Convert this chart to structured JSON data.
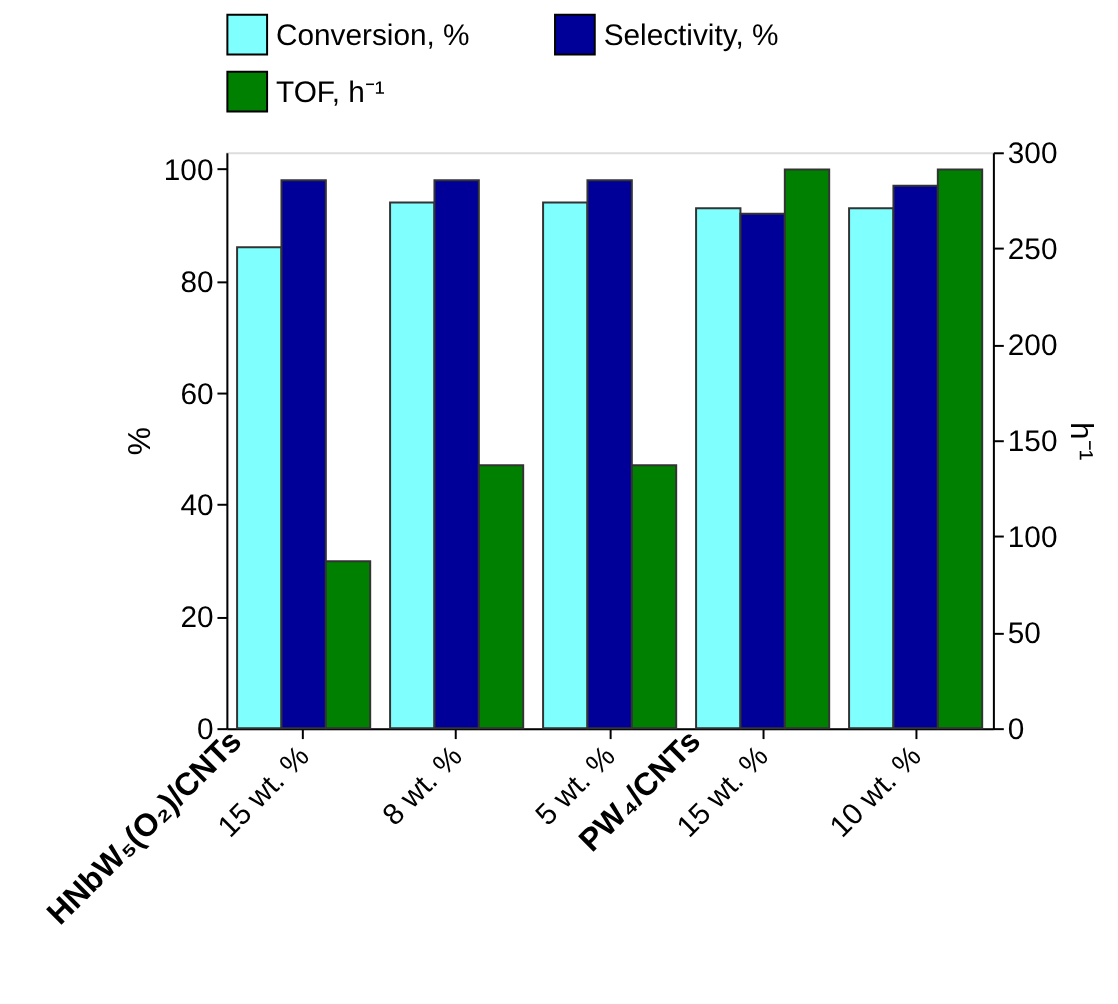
{
  "chart_data": {
    "type": "bar",
    "categories": [
      "15 wt. %",
      "8 wt. %",
      "5 wt. %",
      "15 wt. %",
      "10 wt. %"
    ],
    "series": [
      {
        "name": "Conversion, %",
        "color": "#80ffff",
        "values": [
          86,
          94,
          94,
          93,
          93
        ]
      },
      {
        "name": "Selectivity, %",
        "color": "#000099",
        "values": [
          98,
          98,
          98,
          92,
          97
        ]
      },
      {
        "name": "TOF, h⁻¹",
        "color": "#008000",
        "values": [
          87,
          137,
          137,
          291,
          291
        ],
        "axis": "y2"
      }
    ],
    "ylabel": "%",
    "y2label": "h⁻¹",
    "ylim": [
      0,
      103
    ],
    "yticks": [
      0,
      20,
      40,
      60,
      80,
      100
    ],
    "y2lim": [
      0,
      300
    ],
    "y2ticks": [
      0,
      50,
      100,
      150,
      200,
      250,
      300
    ],
    "annotations": [
      "HNbW₅(O₂)/CNTs",
      "PW₄/CNTs"
    ],
    "legend": "top",
    "grid": false
  }
}
